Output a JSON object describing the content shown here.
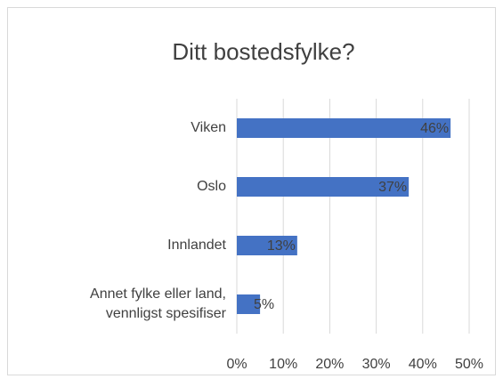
{
  "chart_data": {
    "type": "bar",
    "orientation": "horizontal",
    "title": "Ditt bostedsfylke?",
    "categories": [
      "Viken",
      "Oslo",
      "Innlandet",
      "Annet fylke eller land, vennligst spesifiser"
    ],
    "values": [
      46,
      37,
      13,
      5
    ],
    "value_labels": [
      "46%",
      "37%",
      "13%",
      "5%"
    ],
    "color": "#4472c4",
    "xlim": [
      0,
      50
    ],
    "xticks": [
      {
        "value": 0,
        "label": "0%"
      },
      {
        "value": 10,
        "label": "10%"
      },
      {
        "value": 20,
        "label": "20%"
      },
      {
        "value": 30,
        "label": "30%"
      },
      {
        "value": 40,
        "label": "40%"
      },
      {
        "value": 50,
        "label": "50%"
      }
    ],
    "grid": true
  }
}
